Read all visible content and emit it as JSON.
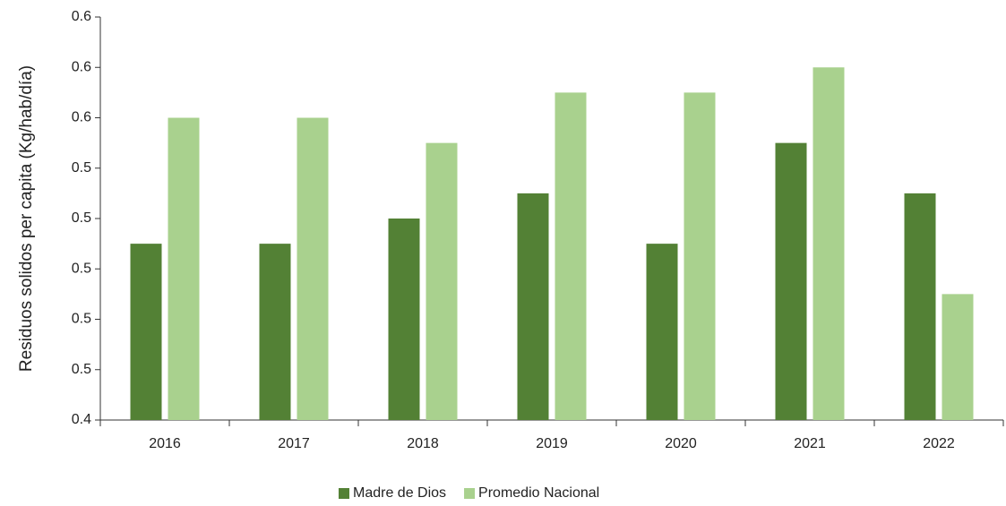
{
  "chart_data": {
    "type": "bar",
    "y_label": "Residuos solidos per capita (Kg/hab/día)",
    "categories": [
      "2016",
      "2017",
      "2018",
      "2019",
      "2020",
      "2021",
      "2022"
    ],
    "series": [
      {
        "name": "Madre de Dios",
        "color": "#538135",
        "values": [
          0.51,
          0.51,
          0.52,
          0.53,
          0.51,
          0.55,
          0.53
        ]
      },
      {
        "name": "Promedio Nacional",
        "color": "#a9d18e",
        "values": [
          0.56,
          0.56,
          0.55,
          0.57,
          0.57,
          0.58,
          0.49
        ]
      }
    ],
    "ylim": [
      0.44,
      0.6
    ],
    "yticks": [
      {
        "value": 0.44,
        "label": "0.4"
      },
      {
        "value": 0.46,
        "label": "0.5"
      },
      {
        "value": 0.48,
        "label": "0.5"
      },
      {
        "value": 0.5,
        "label": "0.5"
      },
      {
        "value": 0.52,
        "label": "0.5"
      },
      {
        "value": 0.54,
        "label": "0.5"
      },
      {
        "value": 0.56,
        "label": "0.6"
      },
      {
        "value": 0.58,
        "label": "0.6"
      },
      {
        "value": 0.6,
        "label": "0.6"
      }
    ],
    "grid": false,
    "legend": "bottom"
  }
}
